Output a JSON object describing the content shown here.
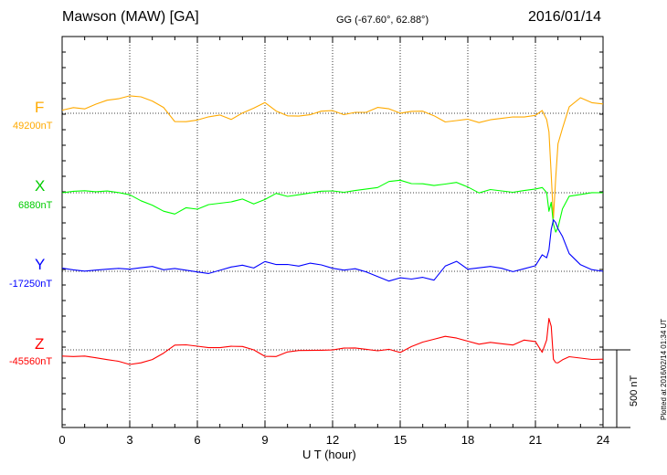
{
  "header": {
    "station": "Mawson (MAW)  [GA]",
    "coords": "GG (-67.60°,  62.88°)",
    "date": "2016/01/14"
  },
  "footer": {
    "plotted": "Plotted at 2016/02/14 01:34 UT"
  },
  "chart_data": {
    "type": "line",
    "title": "Mawson (MAW)  [GA]",
    "subtitle": "GG (-67.60°,  62.88°)",
    "date": "2016/01/14",
    "xlabel": "U T (hour)",
    "xlim": [
      0,
      24
    ],
    "xticks": [
      "0",
      "3",
      "6",
      "9",
      "12",
      "15",
      "18",
      "21",
      "24"
    ],
    "grid": true,
    "scale_bar": "500 nT",
    "scale_bar_nT": 500,
    "series": [
      {
        "name": "F",
        "baseline_label": "49200nT",
        "baseline_nT": 49200,
        "color": "#ffaa00",
        "x": [
          0,
          0.5,
          1,
          1.5,
          2,
          2.5,
          3,
          3.5,
          4,
          4.5,
          5,
          5.5,
          6,
          6.5,
          7,
          7.5,
          8,
          8.5,
          9,
          9.5,
          10,
          10.5,
          11,
          11.5,
          12,
          12.5,
          13,
          13.5,
          14,
          14.5,
          15,
          15.5,
          16,
          16.5,
          17,
          17.5,
          18,
          18.5,
          19,
          19.5,
          20,
          20.5,
          21,
          21.3,
          21.5,
          21.6,
          21.7,
          21.8,
          21.9,
          22,
          22.2,
          22.5,
          23,
          23.5,
          24
        ],
        "values": [
          20,
          35,
          25,
          55,
          80,
          90,
          110,
          105,
          80,
          40,
          -50,
          -50,
          -40,
          -20,
          -10,
          -40,
          0,
          30,
          65,
          10,
          -20,
          -20,
          -10,
          15,
          20,
          -5,
          10,
          10,
          40,
          30,
          0,
          10,
          10,
          -20,
          -60,
          -50,
          -40,
          -60,
          -40,
          -30,
          -20,
          -20,
          -10,
          20,
          -40,
          -120,
          -400,
          -680,
          -420,
          -200,
          -100,
          40,
          100,
          70,
          60
        ]
      },
      {
        "name": "X",
        "baseline_label": "6880nT",
        "baseline_nT": 6880,
        "color": "#00ff00",
        "x": [
          0,
          0.5,
          1,
          1.5,
          2,
          2.5,
          3,
          3.5,
          4,
          4.5,
          5,
          5.5,
          6,
          6.5,
          7,
          7.5,
          8,
          8.5,
          9,
          9.5,
          10,
          10.5,
          11,
          11.5,
          12,
          12.5,
          13,
          13.5,
          14,
          14.5,
          15,
          15.5,
          16,
          16.5,
          17,
          17.5,
          18,
          18.5,
          19,
          19.5,
          20,
          20.5,
          21,
          21.3,
          21.5,
          21.6,
          21.7,
          21.8,
          21.9,
          22,
          22.2,
          22.5,
          23,
          23.5,
          24
        ],
        "values": [
          0,
          10,
          15,
          10,
          15,
          5,
          -10,
          -50,
          -80,
          -120,
          -140,
          -100,
          -110,
          -80,
          -70,
          -60,
          -40,
          -70,
          -40,
          0,
          -20,
          -10,
          0,
          10,
          10,
          0,
          10,
          20,
          30,
          70,
          80,
          60,
          60,
          50,
          60,
          70,
          40,
          0,
          20,
          10,
          0,
          10,
          20,
          30,
          0,
          -120,
          -60,
          -200,
          -250,
          -220,
          -100,
          -20,
          -10,
          0,
          0
        ]
      },
      {
        "name": "Y",
        "baseline_label": "-17250nT",
        "baseline_nT": -17250,
        "color": "#0000ff",
        "x": [
          0,
          0.5,
          1,
          1.5,
          2,
          2.5,
          3,
          3.5,
          4,
          4.5,
          5,
          5.5,
          6,
          6.5,
          7,
          7.5,
          8,
          8.5,
          9,
          9.5,
          10,
          10.5,
          11,
          11.5,
          12,
          12.5,
          13,
          13.5,
          14,
          14.5,
          15,
          15.5,
          16,
          16.5,
          17,
          17.5,
          18,
          18.5,
          19,
          19.5,
          20,
          20.5,
          21,
          21.3,
          21.5,
          21.6,
          21.7,
          21.8,
          21.9,
          22,
          22.2,
          22.5,
          23,
          23.5,
          24
        ],
        "values": [
          20,
          10,
          0,
          5,
          10,
          15,
          10,
          20,
          30,
          10,
          20,
          10,
          0,
          -10,
          10,
          30,
          40,
          20,
          60,
          40,
          40,
          30,
          50,
          40,
          20,
          10,
          20,
          0,
          -30,
          -60,
          -40,
          -50,
          -40,
          -60,
          30,
          60,
          10,
          20,
          30,
          20,
          0,
          20,
          40,
          110,
          90,
          140,
          270,
          330,
          310,
          270,
          220,
          110,
          40,
          10,
          0
        ]
      },
      {
        "name": "Z",
        "baseline_label": "-45560nT",
        "baseline_nT": -45560,
        "color": "#ff0000",
        "x": [
          0,
          0.5,
          1,
          1.5,
          2,
          2.5,
          3,
          3.5,
          4,
          4.5,
          5,
          5.5,
          6,
          6.5,
          7,
          7.5,
          8,
          8.5,
          9,
          9.5,
          10,
          10.5,
          11,
          11.5,
          12,
          12.5,
          13,
          13.5,
          14,
          14.5,
          15,
          15.5,
          16,
          16.5,
          17,
          17.5,
          18,
          18.5,
          19,
          19.5,
          20,
          20.5,
          21,
          21.3,
          21.5,
          21.6,
          21.7,
          21.8,
          21.9,
          22,
          22.2,
          22.5,
          23,
          23.5,
          24
        ],
        "values": [
          -40,
          -45,
          -40,
          -50,
          -60,
          -70,
          -90,
          -80,
          -60,
          -20,
          30,
          30,
          20,
          10,
          10,
          20,
          20,
          0,
          -40,
          -40,
          -10,
          0,
          0,
          0,
          0,
          10,
          10,
          0,
          -10,
          0,
          -20,
          20,
          50,
          70,
          90,
          80,
          60,
          40,
          50,
          40,
          30,
          60,
          50,
          -20,
          60,
          200,
          150,
          -60,
          -80,
          -80,
          -60,
          -40,
          -50,
          -60,
          -60
        ]
      }
    ]
  }
}
